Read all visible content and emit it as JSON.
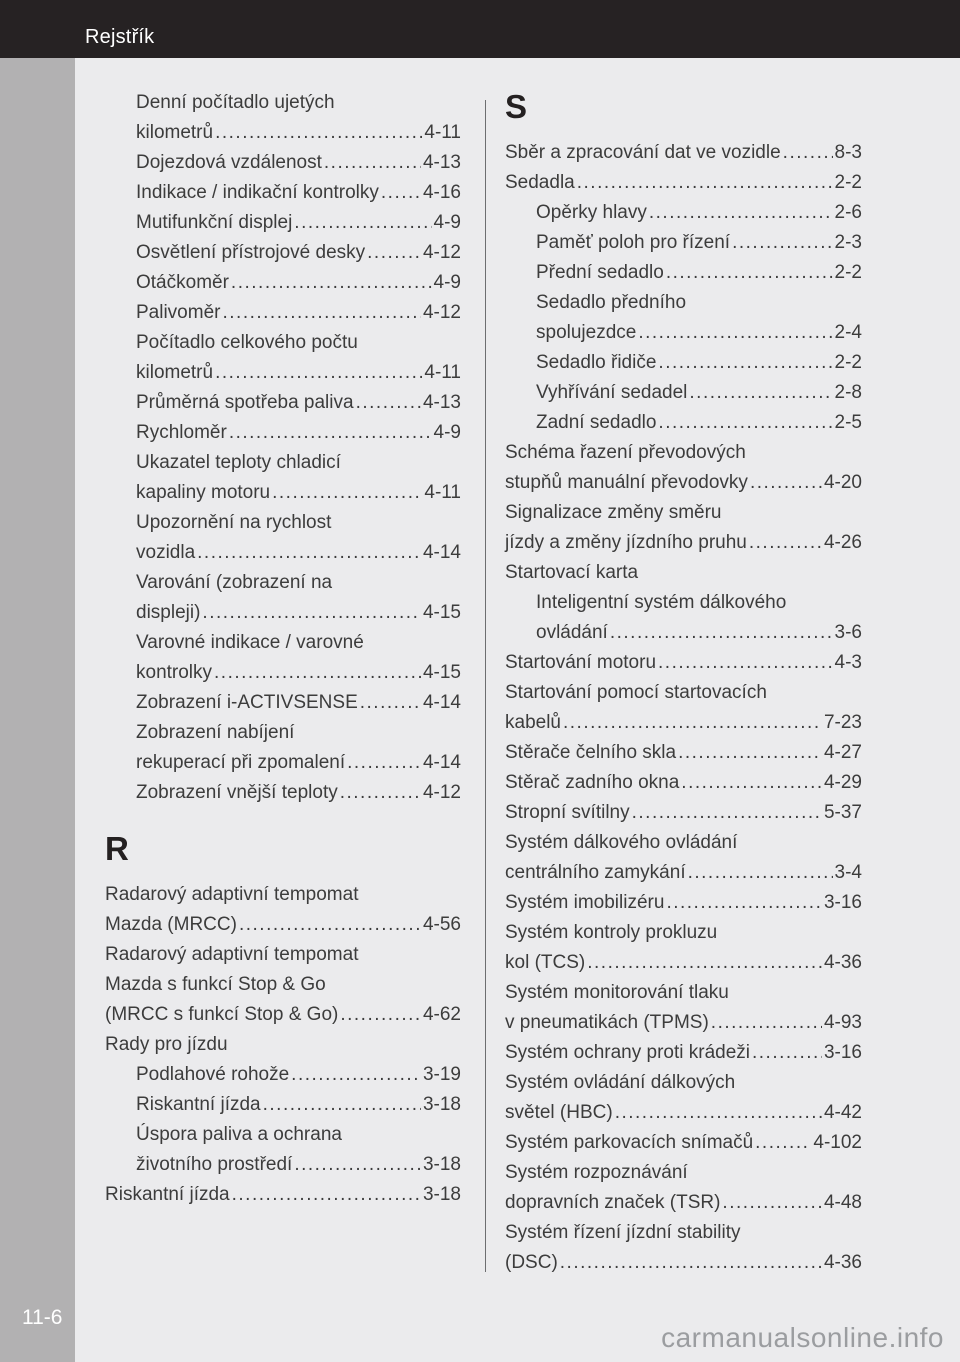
{
  "header": {
    "title": "Rejstřík"
  },
  "footer": {
    "page_number": "11-6",
    "watermark": "carmanualsonline.info"
  },
  "colors": {
    "header_bar": "#262223",
    "page_background": "#ebebed",
    "side_strip": "#b2b1b2",
    "text": "#3c3c3c",
    "divider": "#6d6e70",
    "watermark": "#9b9da0"
  },
  "index": {
    "left_column": [
      {
        "lines": [
          "Denní počítadlo ujetých",
          "kilometrů"
        ],
        "page": "4-11",
        "indent": 1
      },
      {
        "lines": [
          "Dojezdová vzdálenost"
        ],
        "page": "4-13",
        "indent": 1
      },
      {
        "lines": [
          "Indikace / indikační kontrolky"
        ],
        "page": "4-16",
        "indent": 1
      },
      {
        "lines": [
          "Mutifunkční displej"
        ],
        "page": "4-9",
        "indent": 1
      },
      {
        "lines": [
          "Osvětlení přístrojové desky"
        ],
        "page": "4-12",
        "indent": 1
      },
      {
        "lines": [
          "Otáčkoměr"
        ],
        "page": "4-9",
        "indent": 1
      },
      {
        "lines": [
          "Palivoměr"
        ],
        "page": "4-12",
        "indent": 1
      },
      {
        "lines": [
          "Počítadlo celkového počtu",
          "kilometrů"
        ],
        "page": "4-11",
        "indent": 1
      },
      {
        "lines": [
          "Průměrná spotřeba paliva"
        ],
        "page": "4-13",
        "indent": 1
      },
      {
        "lines": [
          "Rychloměr"
        ],
        "page": "4-9",
        "indent": 1
      },
      {
        "lines": [
          "Ukazatel teploty chladicí",
          "kapaliny motoru"
        ],
        "page": "4-11",
        "indent": 1
      },
      {
        "lines": [
          "Upozornění na rychlost",
          "vozidla"
        ],
        "page": "4-14",
        "indent": 1
      },
      {
        "lines": [
          "Varování (zobrazení na",
          "displeji)"
        ],
        "page": "4-15",
        "indent": 1
      },
      {
        "lines": [
          "Varovné indikace / varovné",
          "kontrolky"
        ],
        "page": "4-15",
        "indent": 1
      },
      {
        "lines": [
          "Zobrazení i-ACTIVSENSE"
        ],
        "page": "4-14",
        "indent": 1
      },
      {
        "lines": [
          "Zobrazení nabíjení",
          "rekuperací při zpomalení"
        ],
        "page": "4-14",
        "indent": 1
      },
      {
        "lines": [
          "Zobrazení vnější teploty"
        ],
        "page": "4-12",
        "indent": 1
      },
      {
        "letter": "R"
      },
      {
        "lines": [
          "Radarový adaptivní tempomat",
          "Mazda (MRCC)"
        ],
        "page": "4-56",
        "indent": 0
      },
      {
        "lines": [
          "Radarový adaptivní tempomat",
          "Mazda s funkcí Stop & Go",
          "(MRCC s funkcí Stop & Go)"
        ],
        "page": "4-62",
        "indent": 0
      },
      {
        "lines": [
          "Rady pro jízdu"
        ],
        "page": null,
        "indent": 0
      },
      {
        "lines": [
          "Podlahové rohože"
        ],
        "page": "3-19",
        "indent": 1
      },
      {
        "lines": [
          "Riskantní jízda"
        ],
        "page": "3-18",
        "indent": 1
      },
      {
        "lines": [
          "Úspora paliva a ochrana",
          "životního prostředí"
        ],
        "page": "3-18",
        "indent": 1
      },
      {
        "lines": [
          "Riskantní jízda"
        ],
        "page": "3-18",
        "indent": 0
      }
    ],
    "right_column": [
      {
        "letter": "S",
        "first": true
      },
      {
        "lines": [
          "Sběr a zpracování dat ve vozidle"
        ],
        "page": "8-3",
        "indent": 0
      },
      {
        "lines": [
          "Sedadla"
        ],
        "page": "2-2",
        "indent": 0
      },
      {
        "lines": [
          "Opěrky hlavy"
        ],
        "page": "2-6",
        "indent": 1
      },
      {
        "lines": [
          "Paměť poloh pro řízení"
        ],
        "page": "2-3",
        "indent": 1
      },
      {
        "lines": [
          "Přední sedadlo"
        ],
        "page": "2-2",
        "indent": 1
      },
      {
        "lines": [
          "Sedadlo předního",
          "spolujezdce"
        ],
        "page": "2-4",
        "indent": 1
      },
      {
        "lines": [
          "Sedadlo řidiče"
        ],
        "page": "2-2",
        "indent": 1
      },
      {
        "lines": [
          "Vyhřívání sedadel"
        ],
        "page": "2-8",
        "indent": 1
      },
      {
        "lines": [
          "Zadní sedadlo"
        ],
        "page": "2-5",
        "indent": 1
      },
      {
        "lines": [
          "Schéma řazení převodových",
          "stupňů manuální převodovky"
        ],
        "page": "4-20",
        "indent": 0
      },
      {
        "lines": [
          "Signalizace změny směru",
          "jízdy a změny jízdního pruhu"
        ],
        "page": "4-26",
        "indent": 0
      },
      {
        "lines": [
          "Startovací karta"
        ],
        "page": null,
        "indent": 0
      },
      {
        "lines": [
          "Inteligentní systém dálkového",
          "ovládání"
        ],
        "page": "3-6",
        "indent": 1
      },
      {
        "lines": [
          "Startování motoru"
        ],
        "page": "4-3",
        "indent": 0
      },
      {
        "lines": [
          "Startování pomocí startovacích",
          "kabelů"
        ],
        "page": "7-23",
        "indent": 0
      },
      {
        "lines": [
          "Stěrače čelního skla"
        ],
        "page": "4-27",
        "indent": 0
      },
      {
        "lines": [
          "Stěrač zadního okna"
        ],
        "page": "4-29",
        "indent": 0
      },
      {
        "lines": [
          "Stropní svítilny"
        ],
        "page": "5-37",
        "indent": 0
      },
      {
        "lines": [
          "Systém dálkového ovládání",
          "centrálního zamykání"
        ],
        "page": "3-4",
        "indent": 0
      },
      {
        "lines": [
          "Systém imobilizéru"
        ],
        "page": "3-16",
        "indent": 0
      },
      {
        "lines": [
          "Systém kontroly prokluzu",
          "kol (TCS)"
        ],
        "page": "4-36",
        "indent": 0
      },
      {
        "lines": [
          "Systém monitorování tlaku",
          "v pneumatikách (TPMS)"
        ],
        "page": "4-93",
        "indent": 0
      },
      {
        "lines": [
          "Systém ochrany proti krádeži"
        ],
        "page": "3-16",
        "indent": 0
      },
      {
        "lines": [
          "Systém ovládání dálkových",
          "světel (HBC)"
        ],
        "page": "4-42",
        "indent": 0
      },
      {
        "lines": [
          "Systém parkovacích snímačů"
        ],
        "page": "4-102",
        "indent": 0
      },
      {
        "lines": [
          "Systém rozpoznávání",
          "dopravních značek (TSR)"
        ],
        "page": "4-48",
        "indent": 0
      },
      {
        "lines": [
          "Systém řízení jízdní stability",
          "(DSC)"
        ],
        "page": "4-36",
        "indent": 0
      }
    ]
  }
}
